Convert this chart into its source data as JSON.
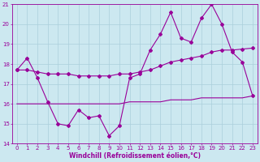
{
  "x": [
    0,
    1,
    2,
    3,
    4,
    5,
    6,
    7,
    8,
    9,
    10,
    11,
    12,
    13,
    14,
    15,
    16,
    17,
    18,
    19,
    20,
    21,
    22,
    23
  ],
  "line1": [
    17.7,
    18.3,
    17.3,
    16.1,
    15.0,
    14.9,
    15.7,
    15.3,
    15.4,
    14.4,
    14.9,
    17.3,
    17.5,
    18.7,
    19.5,
    20.6,
    19.3,
    19.1,
    20.3,
    21.0,
    20.0,
    18.6,
    18.1,
    16.4
  ],
  "line2": [
    17.7,
    17.7,
    17.6,
    17.5,
    17.5,
    17.5,
    17.4,
    17.4,
    17.4,
    17.4,
    17.5,
    17.5,
    17.6,
    17.7,
    17.9,
    18.1,
    18.2,
    18.3,
    18.4,
    18.6,
    18.7,
    18.7,
    18.75,
    18.8
  ],
  "line3": [
    16.0,
    16.0,
    16.0,
    16.0,
    16.0,
    16.0,
    16.0,
    16.0,
    16.0,
    16.0,
    16.0,
    16.1,
    16.1,
    16.1,
    16.1,
    16.2,
    16.2,
    16.2,
    16.3,
    16.3,
    16.3,
    16.3,
    16.3,
    16.4
  ],
  "color": "#990099",
  "bg_color": "#cce8f0",
  "grid_color": "#aacfdb",
  "xlabel": "Windchill (Refroidissement éolien,°C)",
  "xlim": [
    -0.5,
    23.5
  ],
  "ylim": [
    14,
    21
  ],
  "yticks": [
    14,
    15,
    16,
    17,
    18,
    19,
    20,
    21
  ],
  "xticks": [
    0,
    1,
    2,
    3,
    4,
    5,
    6,
    7,
    8,
    9,
    10,
    11,
    12,
    13,
    14,
    15,
    16,
    17,
    18,
    19,
    20,
    21,
    22,
    23
  ],
  "tick_fontsize": 5.0,
  "xlabel_fontsize": 5.5
}
